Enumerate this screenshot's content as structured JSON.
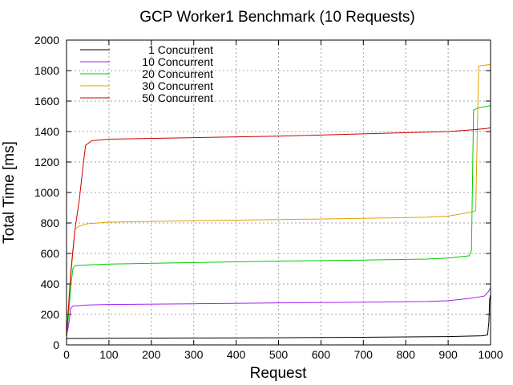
{
  "chart_data": {
    "type": "line",
    "title": "GCP Worker1 Benchmark (10 Requests)",
    "xlabel": "Request",
    "ylabel": "Total Time [ms]",
    "xlim": [
      0,
      1000
    ],
    "ylim": [
      0,
      2000
    ],
    "xticks": [
      0,
      100,
      200,
      300,
      400,
      500,
      600,
      700,
      800,
      900,
      1000
    ],
    "yticks": [
      0,
      200,
      400,
      600,
      800,
      1000,
      1200,
      1400,
      1600,
      1800,
      2000
    ],
    "grid": true,
    "legend_position": "top-left",
    "series": [
      {
        "name": "1 Concurrent",
        "color": "#000000",
        "points": [
          [
            0,
            40
          ],
          [
            5,
            42
          ],
          [
            100,
            43
          ],
          [
            300,
            45
          ],
          [
            500,
            47
          ],
          [
            700,
            50
          ],
          [
            900,
            55
          ],
          [
            980,
            60
          ],
          [
            993,
            65
          ],
          [
            996,
            150
          ],
          [
            998,
            300
          ],
          [
            1000,
            330
          ]
        ]
      },
      {
        "name": "10 Concurrent",
        "color": "#a020f0",
        "points": [
          [
            0,
            60
          ],
          [
            5,
            130
          ],
          [
            10,
            240
          ],
          [
            15,
            255
          ],
          [
            50,
            262
          ],
          [
            100,
            265
          ],
          [
            300,
            270
          ],
          [
            500,
            276
          ],
          [
            700,
            280
          ],
          [
            850,
            285
          ],
          [
            900,
            290
          ],
          [
            950,
            305
          ],
          [
            985,
            320
          ],
          [
            995,
            350
          ],
          [
            1000,
            375
          ]
        ]
      },
      {
        "name": "20 Concurrent",
        "color": "#00cc00",
        "points": [
          [
            0,
            50
          ],
          [
            5,
            200
          ],
          [
            10,
            380
          ],
          [
            15,
            500
          ],
          [
            20,
            520
          ],
          [
            50,
            525
          ],
          [
            100,
            530
          ],
          [
            300,
            540
          ],
          [
            500,
            550
          ],
          [
            700,
            557
          ],
          [
            850,
            563
          ],
          [
            900,
            570
          ],
          [
            950,
            585
          ],
          [
            955,
            620
          ],
          [
            960,
            1540
          ],
          [
            970,
            1555
          ],
          [
            990,
            1565
          ],
          [
            1000,
            1570
          ]
        ]
      },
      {
        "name": "30 Concurrent",
        "color": "#e0a000",
        "points": [
          [
            0,
            60
          ],
          [
            10,
            450
          ],
          [
            20,
            760
          ],
          [
            30,
            780
          ],
          [
            50,
            795
          ],
          [
            100,
            805
          ],
          [
            300,
            815
          ],
          [
            500,
            822
          ],
          [
            700,
            830
          ],
          [
            850,
            838
          ],
          [
            900,
            845
          ],
          [
            950,
            870
          ],
          [
            965,
            880
          ],
          [
            968,
            1300
          ],
          [
            972,
            1830
          ],
          [
            985,
            1835
          ],
          [
            1000,
            1840
          ]
        ]
      },
      {
        "name": "50 Concurrent",
        "color": "#cc0000",
        "points": [
          [
            0,
            50
          ],
          [
            10,
            480
          ],
          [
            20,
            760
          ],
          [
            30,
            950
          ],
          [
            40,
            1200
          ],
          [
            45,
            1310
          ],
          [
            60,
            1340
          ],
          [
            100,
            1350
          ],
          [
            300,
            1360
          ],
          [
            500,
            1370
          ],
          [
            700,
            1385
          ],
          [
            900,
            1400
          ],
          [
            950,
            1410
          ],
          [
            990,
            1420
          ],
          [
            1000,
            1425
          ]
        ]
      }
    ]
  }
}
